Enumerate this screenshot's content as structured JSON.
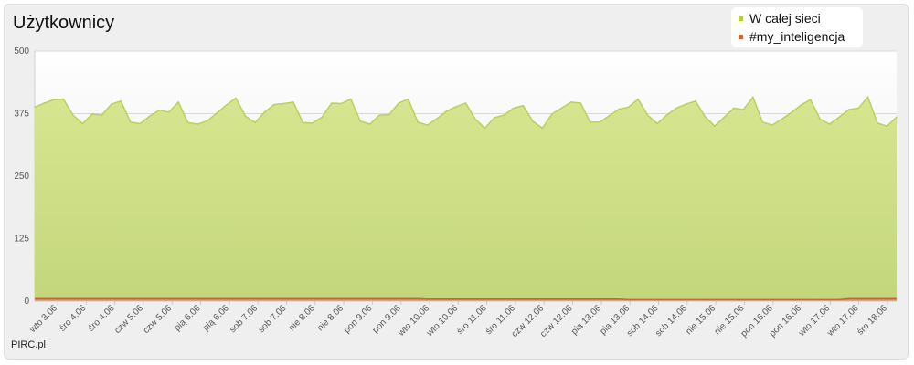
{
  "title": "Użytkownicy",
  "credit": "PIRC.pl",
  "legend": [
    {
      "name": "W całej sieci",
      "color": "#b5cc3c"
    },
    {
      "name": "#my_inteligencja",
      "color": "#c7683a"
    }
  ],
  "chart_data": {
    "type": "area",
    "title": "Użytkownicy",
    "xlabel": "",
    "ylabel": "",
    "ylim": [
      0,
      500
    ],
    "yticks": [
      "0",
      "125",
      "250",
      "375",
      "500"
    ],
    "grid": true,
    "legend_position": "top-right",
    "xtick_labels": [
      "wto 3.06",
      "śro 4.06",
      "śro 4.06",
      "czw 5.06",
      "czw 5.06",
      "pią 6.06",
      "pią 6.06",
      "sob 7.06",
      "sob 7.06",
      "nie 8.06",
      "nie 8.06",
      "pon 9.06",
      "pon 9.06",
      "wto 10.06",
      "wto 10.06",
      "śro 11.06",
      "śro 11.06",
      "czw 12.06",
      "czw 12.06",
      "pią 13.06",
      "pią 13.06",
      "sob 14.06",
      "sob 14.06",
      "nie 15.06",
      "nie 15.06",
      "pon 16.06",
      "pon 16.06",
      "wto 17.06",
      "wto 17.06",
      "śro 18.06"
    ],
    "series": [
      {
        "name": "W całej sieci",
        "color": "#c2d96a",
        "values": [
          388,
          396,
          403,
          404,
          372,
          355,
          374,
          372,
          394,
          400,
          358,
          355,
          370,
          382,
          378,
          398,
          357,
          354,
          360,
          376,
          392,
          406,
          370,
          357,
          378,
          393,
          395,
          398,
          357,
          356,
          368,
          396,
          395,
          404,
          360,
          354,
          372,
          373,
          396,
          404,
          358,
          352,
          365,
          380,
          389,
          396,
          364,
          346,
          367,
          372,
          386,
          391,
          360,
          346,
          374,
          386,
          398,
          396,
          358,
          358,
          371,
          384,
          388,
          404,
          372,
          355,
          372,
          386,
          394,
          400,
          369,
          350,
          368,
          386,
          383,
          408,
          358,
          352,
          364,
          377,
          392,
          403,
          364,
          354,
          368,
          383,
          386,
          408,
          356,
          350,
          368
        ]
      },
      {
        "name": "#my_inteligencja",
        "color": "#c7683a",
        "values": [
          5,
          5,
          5,
          5,
          5,
          5,
          5,
          5,
          5,
          5,
          5,
          5,
          5,
          5,
          5,
          5,
          5,
          5,
          5,
          5,
          5,
          5,
          5,
          5,
          5,
          5,
          5,
          5,
          5,
          5,
          5,
          5,
          5,
          5,
          5,
          5,
          5,
          5,
          5,
          5,
          5,
          4,
          4,
          4,
          4,
          4,
          4,
          4,
          4,
          4,
          4,
          4,
          4,
          4,
          4,
          4,
          4,
          4,
          4,
          4,
          4,
          4,
          3,
          3,
          3,
          3,
          3,
          3,
          3,
          3,
          3,
          3,
          3,
          3,
          3,
          3,
          3,
          3,
          3,
          3,
          3,
          3,
          3,
          3,
          3,
          5,
          5,
          5,
          5,
          5,
          5
        ]
      }
    ]
  }
}
